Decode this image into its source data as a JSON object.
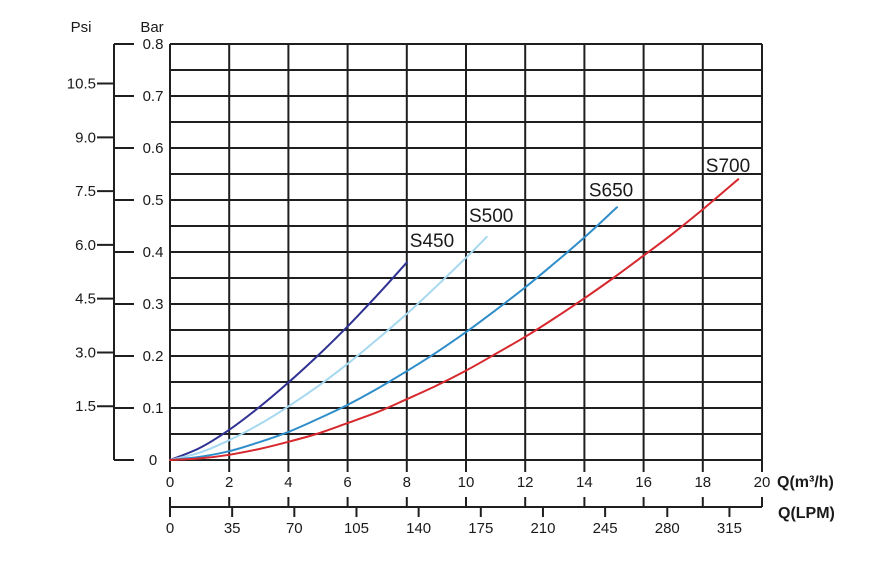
{
  "chart_data": {
    "type": "line",
    "background": "#ffffff",
    "grid_color": "#1f1f1f",
    "text_color": "#1a1a1a",
    "grid": true,
    "legend_position": "inline-labels",
    "x_axis": {
      "title": "Q(m³/h)",
      "range": [
        0,
        20
      ],
      "major_step": 2,
      "tick_labels": [
        "0",
        "2",
        "4",
        "6",
        "8",
        "10",
        "12",
        "14",
        "16",
        "18",
        "20"
      ]
    },
    "x_axis_secondary": {
      "title": "Q(LPM)",
      "lpm_per_m3h": 16.6667,
      "tick_step": 35,
      "tick_values": [
        0,
        35,
        70,
        105,
        140,
        175,
        210,
        245,
        280,
        315
      ],
      "tick_labels": [
        "0",
        "35",
        "70",
        "105",
        "140",
        "175",
        "210",
        "245",
        "280",
        "315"
      ]
    },
    "y_axis": {
      "title": "Bar",
      "range": [
        0,
        0.8
      ],
      "major_step": 0.1,
      "minor_step": 0.05,
      "tick_values": [
        0,
        0.1,
        0.2,
        0.3,
        0.4,
        0.5,
        0.6,
        0.7,
        0.8
      ],
      "tick_labels": [
        "0",
        "0.1",
        "0.2",
        "0.3",
        "0.4",
        "0.5",
        "0.6",
        "0.7",
        "0.8"
      ]
    },
    "y_axis_secondary": {
      "title": "Psi",
      "psi_per_bar": 14.5038,
      "tick_values": [
        1.5,
        3.0,
        4.5,
        6.0,
        7.5,
        9.0,
        10.5
      ],
      "tick_labels": [
        "1.5",
        "3.0",
        "4.5",
        "6.0",
        "7.5",
        "9.0",
        "10.5"
      ]
    },
    "series": [
      {
        "name": "S450",
        "color": "#2e3192",
        "label_at": [
          8.85,
          0.423
        ],
        "points": [
          [
            0,
            0
          ],
          [
            1,
            0.023
          ],
          [
            2,
            0.058
          ],
          [
            3,
            0.101
          ],
          [
            4,
            0.149
          ],
          [
            5,
            0.201
          ],
          [
            6,
            0.257
          ],
          [
            7,
            0.317
          ],
          [
            8,
            0.38
          ]
        ]
      },
      {
        "name": "S500",
        "color": "#a6d8f0",
        "label_at": [
          10.85,
          0.471
        ],
        "points": [
          [
            0,
            0
          ],
          [
            1,
            0.014
          ],
          [
            2,
            0.038
          ],
          [
            3,
            0.068
          ],
          [
            4,
            0.103
          ],
          [
            5,
            0.142
          ],
          [
            6,
            0.185
          ],
          [
            7,
            0.232
          ],
          [
            8,
            0.281
          ],
          [
            9,
            0.334
          ],
          [
            10,
            0.389
          ],
          [
            10.7,
            0.429
          ]
        ]
      },
      {
        "name": "S650",
        "color": "#2f8dca",
        "label_at": [
          14.9,
          0.52
        ],
        "points": [
          [
            0,
            0
          ],
          [
            1,
            0.006
          ],
          [
            2,
            0.017
          ],
          [
            3,
            0.034
          ],
          [
            4,
            0.054
          ],
          [
            5,
            0.079
          ],
          [
            6,
            0.106
          ],
          [
            7,
            0.137
          ],
          [
            8,
            0.171
          ],
          [
            9,
            0.207
          ],
          [
            10,
            0.246
          ],
          [
            11,
            0.288
          ],
          [
            12,
            0.332
          ],
          [
            13,
            0.379
          ],
          [
            14,
            0.428
          ],
          [
            15.1,
            0.486
          ]
        ]
      },
      {
        "name": "S700",
        "color": "#d7282e",
        "label_at": [
          18.85,
          0.567
        ],
        "points": [
          [
            0,
            0
          ],
          [
            1,
            0.003
          ],
          [
            2,
            0.01
          ],
          [
            3,
            0.021
          ],
          [
            4,
            0.035
          ],
          [
            5,
            0.051
          ],
          [
            6,
            0.071
          ],
          [
            7,
            0.092
          ],
          [
            8,
            0.117
          ],
          [
            9,
            0.143
          ],
          [
            10,
            0.172
          ],
          [
            11,
            0.204
          ],
          [
            12,
            0.237
          ],
          [
            13,
            0.273
          ],
          [
            14,
            0.311
          ],
          [
            15,
            0.351
          ],
          [
            16,
            0.393
          ],
          [
            17,
            0.436
          ],
          [
            18,
            0.482
          ],
          [
            19.2,
            0.54
          ]
        ]
      }
    ]
  }
}
